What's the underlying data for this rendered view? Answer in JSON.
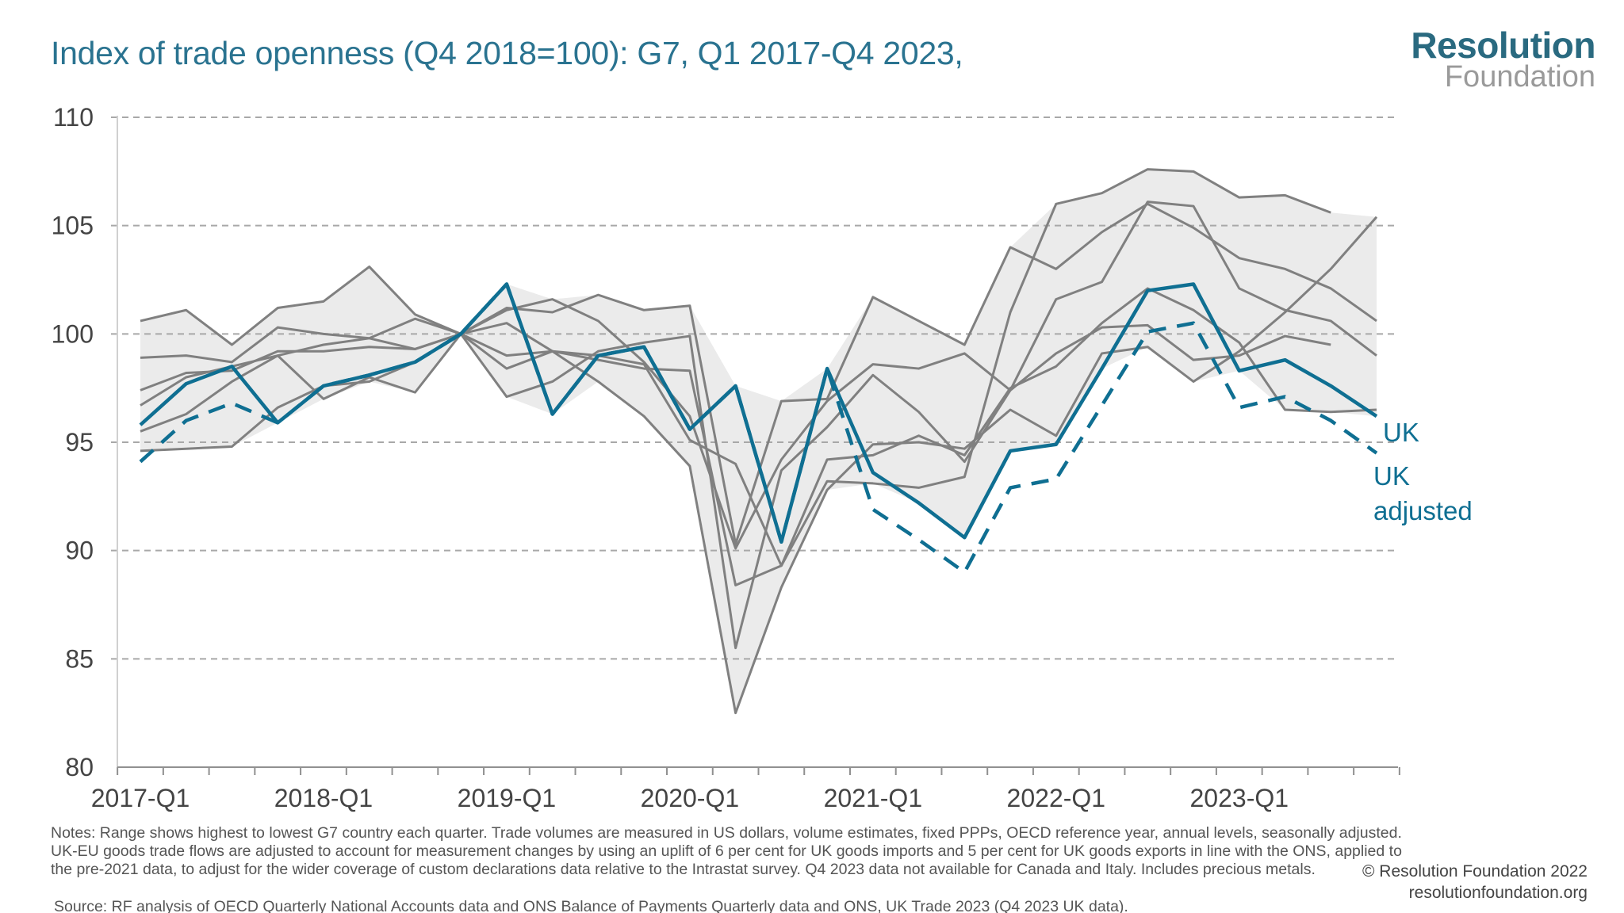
{
  "header": {
    "title": "Index of trade openness (Q4 2018=100): G7, Q1 2017-Q4 2023,",
    "logo_line1": "Resolution",
    "logo_line2": "Foundation"
  },
  "colors": {
    "uk": "#0f6f92",
    "countries": "#808080",
    "range": "#ebebeb",
    "title": "#2a7390",
    "logo_yellow": "#f5d31a"
  },
  "chart_data": {
    "type": "line",
    "title": "Index of trade openness (Q4 2018=100): G7, Q1 2017-Q4 2023,",
    "ylim": [
      80,
      110
    ],
    "yticks": [
      80,
      85,
      90,
      95,
      100,
      105,
      110
    ],
    "grid": true,
    "x": [
      "2017-Q1",
      "2017-Q2",
      "2017-Q3",
      "2017-Q4",
      "2018-Q1",
      "2018-Q2",
      "2018-Q3",
      "2018-Q4",
      "2019-Q1",
      "2019-Q2",
      "2019-Q3",
      "2019-Q4",
      "2020-Q1",
      "2020-Q2",
      "2020-Q3",
      "2020-Q4",
      "2021-Q1",
      "2021-Q2",
      "2021-Q3",
      "2021-Q4",
      "2022-Q1",
      "2022-Q2",
      "2022-Q3",
      "2022-Q4",
      "2023-Q1",
      "2023-Q2",
      "2023-Q3",
      "2023-Q4"
    ],
    "xtick_labels": [
      "2017-Q1",
      "2018-Q1",
      "2019-Q1",
      "2020-Q1",
      "2021-Q1",
      "2022-Q1",
      "2023-Q1"
    ],
    "range_band": "highest to lowest G7 country each quarter",
    "series": [
      {
        "name": "UK",
        "style": "solid",
        "highlight": true,
        "values": [
          95.8,
          97.7,
          98.5,
          95.9,
          97.6,
          98.1,
          98.7,
          100,
          102.3,
          96.3,
          99.0,
          99.4,
          95.6,
          97.6,
          90.4,
          98.4,
          93.6,
          92.2,
          90.6,
          94.6,
          94.9,
          98.4,
          102.0,
          102.3,
          98.3,
          98.8,
          97.6,
          96.2
        ]
      },
      {
        "name": "UK adjusted",
        "style": "dashed",
        "highlight": true,
        "values": [
          94.1,
          96.0,
          96.8,
          95.9,
          97.6,
          98.1,
          98.7,
          100,
          102.3,
          96.3,
          99.0,
          99.4,
          95.6,
          97.6,
          90.4,
          98.4,
          91.9,
          90.5,
          89.0,
          92.9,
          93.3,
          96.7,
          100.1,
          100.5,
          96.6,
          97.1,
          96.0,
          94.5
        ]
      },
      {
        "style": "solid",
        "values": [
          100.6,
          101.1,
          99.5,
          101.2,
          101.5,
          103.1,
          100.9,
          100,
          101.2,
          101.0,
          101.8,
          101.1,
          101.3,
          90.3,
          96.9,
          97.0,
          101.7,
          100.6,
          99.5,
          104.0,
          103.0,
          104.7,
          106.0,
          104.9,
          103.5,
          103.0,
          102.1,
          100.6
        ]
      },
      {
        "style": "solid",
        "values": [
          98.9,
          99.0,
          98.7,
          100.3,
          100.0,
          99.8,
          99.3,
          100,
          100.5,
          99.2,
          98.8,
          98.4,
          98.3,
          88.4,
          89.3,
          93.2,
          93.1,
          92.9,
          93.4,
          101.0,
          106.0,
          106.5,
          107.6,
          107.5,
          106.3,
          106.4,
          105.6,
          null
        ]
      },
      {
        "style": "solid",
        "values": [
          97.4,
          98.2,
          98.3,
          99.2,
          99.2,
          99.4,
          99.3,
          100,
          101.1,
          101.6,
          100.6,
          98.7,
          96.2,
          90.1,
          94.2,
          96.9,
          98.6,
          98.4,
          99.1,
          97.4,
          101.6,
          102.4,
          106.1,
          105.9,
          102.1,
          101.1,
          100.6,
          99.0
        ]
      },
      {
        "style": "solid",
        "values": [
          96.7,
          98.0,
          98.5,
          99.0,
          97.0,
          98.0,
          97.3,
          100,
          97.1,
          97.8,
          99.2,
          99.6,
          99.9,
          85.5,
          93.7,
          95.7,
          98.1,
          96.4,
          94.1,
          97.4,
          99.1,
          100.3,
          100.4,
          98.8,
          99.0,
          99.9,
          99.5,
          null
        ]
      },
      {
        "style": "solid",
        "values": [
          94.6,
          94.7,
          94.8,
          96.6,
          97.6,
          97.8,
          98.7,
          100,
          99.0,
          99.2,
          97.8,
          96.2,
          93.9,
          82.5,
          88.3,
          92.8,
          94.9,
          95.0,
          94.7,
          96.5,
          95.3,
          99.1,
          99.4,
          97.8,
          99.2,
          101.0,
          103.0,
          105.4
        ]
      },
      {
        "style": "solid",
        "values": [
          95.5,
          96.3,
          97.8,
          99.0,
          99.5,
          99.8,
          100.7,
          100,
          98.4,
          99.2,
          99.0,
          98.6,
          95.1,
          94.0,
          89.3,
          94.2,
          94.4,
          95.3,
          94.4,
          97.5,
          98.5,
          100.5,
          102.1,
          101.1,
          99.6,
          96.5,
          96.4,
          96.5
        ]
      }
    ],
    "labels": {
      "uk": "UK",
      "uk_adjusted_1": "UK",
      "uk_adjusted_2": "adjusted"
    }
  },
  "footer": {
    "notes": "Notes: Range shows highest to lowest G7 country each quarter. Trade volumes are measured in US dollars, volume estimates, fixed PPPs, OECD reference year, annual levels, seasonally adjusted. UK-EU goods trade flows are adjusted to account for measurement changes by using an uplift of 6 per cent for UK goods imports and 5 per cent for UK goods exports in line with the ONS, applied to the pre-2021 data, to adjust for the wider coverage of custom declarations data relative to the Intrastat survey. Q4 2023 data not available for Canada and Italy. Includes precious metals.",
    "source": "Source: RF analysis of OECD Quarterly National Accounts data and ONS Balance of Payments Quarterly data and ONS, UK Trade 2023 (Q4 2023 UK data).",
    "copyright": "© Resolution Foundation 2022",
    "website": "resolutionfoundation.org"
  }
}
